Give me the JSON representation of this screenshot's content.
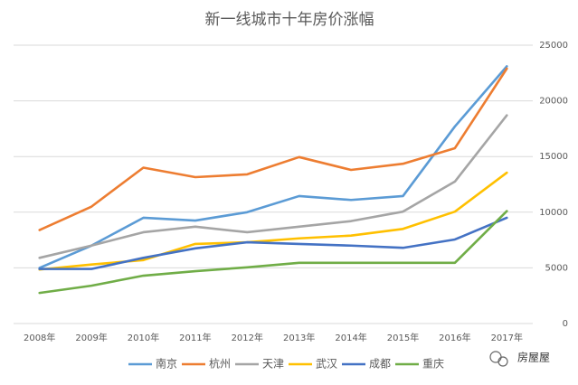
{
  "chart_data": {
    "type": "line",
    "title": "新一线城市十年房价涨幅",
    "categories": [
      "2008年",
      "2009年",
      "2010年",
      "2011年",
      "2012年",
      "2013年",
      "2014年",
      "2015年",
      "2016年",
      "2017年"
    ],
    "series": [
      {
        "name": "南京",
        "color": "#5b9bd5",
        "values": [
          5000,
          7000,
          9500,
          9250,
          10000,
          11450,
          11100,
          11450,
          17700,
          23100
        ]
      },
      {
        "name": "杭州",
        "color": "#ed7d31",
        "values": [
          8400,
          10500,
          14000,
          13150,
          13400,
          14950,
          13800,
          14350,
          15750,
          22900
        ]
      },
      {
        "name": "天津",
        "color": "#a5a5a5",
        "values": [
          5900,
          7000,
          8200,
          8700,
          8200,
          8700,
          9200,
          10050,
          12750,
          18700
        ]
      },
      {
        "name": "武汉",
        "color": "#ffc000",
        "values": [
          4850,
          5300,
          5700,
          7150,
          7300,
          7650,
          7900,
          8500,
          10050,
          13550
        ]
      },
      {
        "name": "成都",
        "color": "#4472c4",
        "values": [
          4900,
          4900,
          5900,
          6750,
          7300,
          7150,
          7000,
          6800,
          7550,
          9500
        ]
      },
      {
        "name": "重庆",
        "color": "#70ad47",
        "values": [
          2750,
          3400,
          4300,
          4700,
          5050,
          5450,
          5450,
          5450,
          5450,
          10100
        ]
      }
    ],
    "ylim": [
      0,
      25000
    ],
    "yticks": [
      0,
      5000,
      10000,
      15000,
      20000,
      25000
    ],
    "y_axis_side": "right",
    "grid": true,
    "legend": "bottom",
    "watermark": "房屋屋"
  }
}
